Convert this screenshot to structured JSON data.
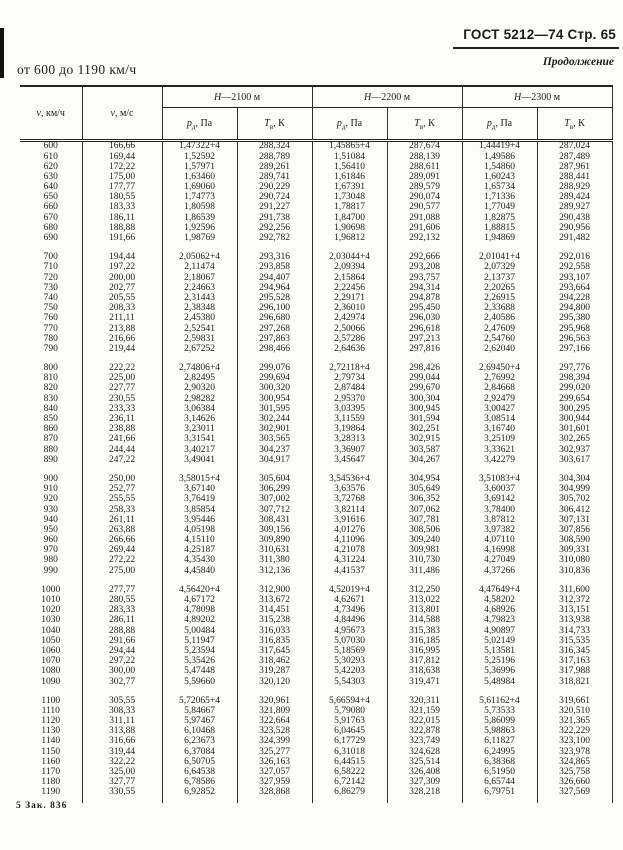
{
  "page": {
    "header_right": "ГОСТ 5212—74 Стр. 65",
    "continuation": "Продолжение",
    "range_title": "от 600 до 1190 км/ч",
    "footer": "5 Зак. 836"
  },
  "table": {
    "col_v_kmh": {
      "letter": "v",
      "rest": ", км/ч"
    },
    "col_v_ms": {
      "letter": "v",
      "rest": ", м/с"
    },
    "groups_header": [
      {
        "letter": "H",
        "rest": "—2100 м"
      },
      {
        "letter": "H",
        "rest": "—2200 м"
      },
      {
        "letter": "H",
        "rest": "—2300 м"
      }
    ],
    "sub_p": {
      "letter": "p",
      "sub": "д",
      "rest": ", Па"
    },
    "sub_T": {
      "letter": "T",
      "sub": "в",
      "rest": ", К"
    },
    "row_groups": [
      [
        [
          "600",
          "166,66",
          "1,47322+4",
          "288,324",
          "1,45865+4",
          "287,674",
          "1,44419+4",
          "287,024"
        ],
        [
          "610",
          "169,44",
          "1,52592",
          "288,789",
          "1,51084",
          "288,139",
          "1,49586",
          "287,489"
        ],
        [
          "620",
          "172,22",
          "1,57971",
          "289,261",
          "1,56410",
          "288,611",
          "1,54860",
          "287,961"
        ],
        [
          "630",
          "175,00",
          "1,63460",
          "289,741",
          "1,61846",
          "289,091",
          "1,60243",
          "288,441"
        ],
        [
          "640",
          "177,77",
          "1,69060",
          "290,229",
          "1,67391",
          "289,579",
          "1,65734",
          "288,929"
        ],
        [
          "650",
          "180,55",
          "1,74773",
          "290,724",
          "1,73048",
          "290,074",
          "1,71336",
          "289,424"
        ],
        [
          "660",
          "183,33",
          "1,80598",
          "291,227",
          "1,78817",
          "290,577",
          "1,77049",
          "289,927"
        ],
        [
          "670",
          "186,11",
          "1,86539",
          "291,738",
          "1,84700",
          "291,088",
          "1,82875",
          "290,438"
        ],
        [
          "680",
          "188,88",
          "1,92596",
          "292,256",
          "1,90698",
          "291,606",
          "1,88815",
          "290,956"
        ],
        [
          "690",
          "191,66",
          "1,98769",
          "292,782",
          "1,96812",
          "292,132",
          "1,94869",
          "291,482"
        ]
      ],
      [
        [
          "700",
          "194,44",
          "2,05062+4",
          "293,316",
          "2,03044+4",
          "292,666",
          "2,01041+4",
          "292,016"
        ],
        [
          "710",
          "197,22",
          "2,11474",
          "293,858",
          "2,09394",
          "293,208",
          "2,07329",
          "292,558"
        ],
        [
          "720",
          "200,00",
          "2,18067",
          "294,407",
          "2,15864",
          "293,757",
          "2,13737",
          "293,107"
        ],
        [
          "730",
          "202,77",
          "2,24663",
          "294,964",
          "2,22456",
          "294,314",
          "2,20265",
          "293,664"
        ],
        [
          "740",
          "205,55",
          "2,31443",
          "295,528",
          "2,29171",
          "294,878",
          "2,26915",
          "294,228"
        ],
        [
          "750",
          "208,33",
          "2,38348",
          "296,100",
          "2,36010",
          "295,450",
          "2,33688",
          "294,800"
        ],
        [
          "760",
          "211,11",
          "2,45380",
          "296,680",
          "2,42974",
          "296,030",
          "2,40586",
          "295,380"
        ],
        [
          "770",
          "213,88",
          "2,52541",
          "297,268",
          "2,50066",
          "296,618",
          "2,47609",
          "295,968"
        ],
        [
          "780",
          "216,66",
          "2,59831",
          "297,863",
          "2,57286",
          "297,213",
          "2,54760",
          "296,563"
        ],
        [
          "790",
          "219,44",
          "2,67252",
          "298,466",
          "2,64636",
          "297,816",
          "2,62040",
          "297,166"
        ]
      ],
      [
        [
          "800",
          "222,22",
          "2,74806+4",
          "299,076",
          "2,72118+4",
          "298,426",
          "2,69450+4",
          "297,776"
        ],
        [
          "810",
          "225,00",
          "2,82495",
          "299,694",
          "2,79734",
          "299,044",
          "2,76992",
          "298,394"
        ],
        [
          "820",
          "227,77",
          "2,90320",
          "300,320",
          "2,87484",
          "299,670",
          "2,84668",
          "299,020"
        ],
        [
          "830",
          "230,55",
          "2,98282",
          "300,954",
          "2,95370",
          "300,304",
          "2,92479",
          "299,654"
        ],
        [
          "840",
          "233,33",
          "3,06384",
          "301,595",
          "3,03395",
          "300,945",
          "3,00427",
          "300,295"
        ],
        [
          "850",
          "236,11",
          "3,14626",
          "302,244",
          "3,11559",
          "301,594",
          "3,08514",
          "300,944"
        ],
        [
          "860",
          "238,88",
          "3,23011",
          "302,901",
          "3,19864",
          "302,251",
          "3,16740",
          "301,601"
        ],
        [
          "870",
          "241,66",
          "3,31541",
          "303,565",
          "3,28313",
          "302,915",
          "3,25109",
          "302,265"
        ],
        [
          "880",
          "244,44",
          "3,40217",
          "304,237",
          "3,36907",
          "303,587",
          "3,33621",
          "302,937"
        ],
        [
          "890",
          "247,22",
          "3,49041",
          "304,917",
          "3,45647",
          "304,267",
          "3,42279",
          "303,617"
        ]
      ],
      [
        [
          "900",
          "250,00",
          "3,58015+4",
          "305,604",
          "3,54536+4",
          "304,954",
          "3,51083+4",
          "304,304"
        ],
        [
          "910",
          "252,77",
          "3,67140",
          "306,299",
          "3,63576",
          "305,649",
          "3,60037",
          "304,999"
        ],
        [
          "920",
          "255,55",
          "3,76419",
          "307,002",
          "3,72768",
          "306,352",
          "3,69142",
          "305,702"
        ],
        [
          "930",
          "258,33",
          "3,85854",
          "307,712",
          "3,82114",
          "307,062",
          "3,78400",
          "306,412"
        ],
        [
          "940",
          "261,11",
          "3,95446",
          "308,431",
          "3,91616",
          "307,781",
          "3,87812",
          "307,131"
        ],
        [
          "950",
          "263,88",
          "4,05198",
          "309,156",
          "4,01276",
          "308,506",
          "3,97382",
          "307,856"
        ],
        [
          "960",
          "266,66",
          "4,15110",
          "309,890",
          "4,11096",
          "309,240",
          "4,07110",
          "308,590"
        ],
        [
          "970",
          "269,44",
          "4,25187",
          "310,631",
          "4,21078",
          "309,981",
          "4,16998",
          "309,331"
        ],
        [
          "980",
          "272,22",
          "4,35430",
          "311,380",
          "4,31224",
          "310,730",
          "4,27049",
          "310,080"
        ],
        [
          "990",
          "275,00",
          "4,45840",
          "312,136",
          "4,41537",
          "311,486",
          "4,37266",
          "310,836"
        ]
      ],
      [
        [
          "1000",
          "277,77",
          "4,56420+4",
          "312,900",
          "4,52019+4",
          "312,250",
          "4,47649+4",
          "311,600"
        ],
        [
          "1010",
          "280,55",
          "4,67172",
          "313,672",
          "4,62671",
          "313,022",
          "4,58202",
          "312,372"
        ],
        [
          "1020",
          "283,33",
          "4,78098",
          "314,451",
          "4,73496",
          "313,801",
          "4,68926",
          "313,151"
        ],
        [
          "1030",
          "286,11",
          "4,89202",
          "315,238",
          "4,84496",
          "314,588",
          "4,79823",
          "313,938"
        ],
        [
          "1040",
          "288,88",
          "5,00484",
          "316,033",
          "4,95673",
          "315,383",
          "4,90897",
          "314,733"
        ],
        [
          "1050",
          "291,66",
          "5,11947",
          "316,835",
          "5,07030",
          "316,185",
          "5,02149",
          "315,535"
        ],
        [
          "1060",
          "294,44",
          "5,23594",
          "317,645",
          "5,18569",
          "316,995",
          "5,13581",
          "316,345"
        ],
        [
          "1070",
          "297,22",
          "5,35426",
          "318,462",
          "5,30293",
          "317,812",
          "5,25196",
          "317,163"
        ],
        [
          "1080",
          "300,00",
          "5,47448",
          "319,287",
          "5,42203",
          "318,638",
          "5,36996",
          "317,988"
        ],
        [
          "1090",
          "302,77",
          "5,59660",
          "320,120",
          "5,54303",
          "319,471",
          "5,48984",
          "318,821"
        ]
      ],
      [
        [
          "1100",
          "305,55",
          "5,72065+4",
          "320,961",
          "5,66594+4",
          "320,311",
          "5,61162+4",
          "319,661"
        ],
        [
          "1110",
          "308,33",
          "5,84667",
          "321,809",
          "5,79080",
          "321,159",
          "5,73533",
          "320,510"
        ],
        [
          "1120",
          "311,11",
          "5,97467",
          "322,664",
          "5,91763",
          "322,015",
          "5,86099",
          "321,365"
        ],
        [
          "1130",
          "313,88",
          "6,10468",
          "323,528",
          "6,04645",
          "322,878",
          "5,98863",
          "322,229"
        ],
        [
          "1140",
          "316,66",
          "6,23673",
          "324,399",
          "6,17729",
          "323,749",
          "6,11827",
          "323,100"
        ],
        [
          "1150",
          "319,44",
          "6,37084",
          "325,277",
          "6,31018",
          "324,628",
          "6,24995",
          "323,978"
        ],
        [
          "1160",
          "322,22",
          "6,50705",
          "326,163",
          "6,44515",
          "325,514",
          "6,38368",
          "324,865"
        ],
        [
          "1170",
          "325,00",
          "6,64538",
          "327,057",
          "6,58222",
          "326,408",
          "6,51950",
          "325,758"
        ],
        [
          "1180",
          "327,77",
          "6,78586",
          "327,959",
          "6,72142",
          "327,309",
          "6,65744",
          "326,660"
        ],
        [
          "1190",
          "330,55",
          "6,92852",
          "328,868",
          "6,86279",
          "328,218",
          "6,79751",
          "327,569"
        ]
      ]
    ]
  }
}
